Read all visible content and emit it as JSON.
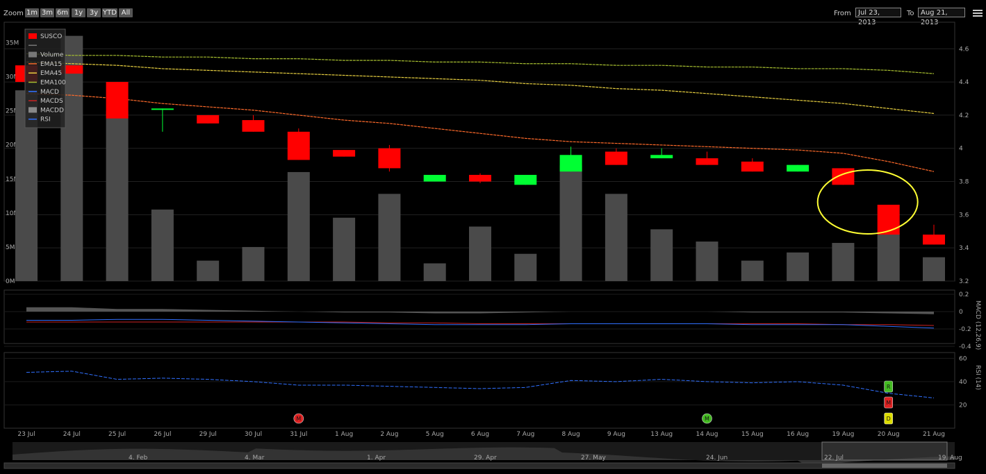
{
  "toolbar": {
    "zoom_label": "Zoom",
    "zoom_buttons": [
      "1m",
      "3m",
      "6m",
      "1y",
      "3y",
      "YTD",
      "All"
    ],
    "from_label": "From",
    "from_value": "Jul 23, 2013",
    "to_label": "To",
    "to_value": "Aug 21, 2013",
    "menu_icon": "menu-icon"
  },
  "chart_data": {
    "type": "candlestick",
    "categories": [
      "23 Jul",
      "24 Jul",
      "25 Jul",
      "26 Jul",
      "29 Jul",
      "30 Jul",
      "31 Jul",
      "1 Aug",
      "2 Aug",
      "5 Aug",
      "6 Aug",
      "7 Aug",
      "8 Aug",
      "9 Aug",
      "13 Aug",
      "14 Aug",
      "15 Aug",
      "16 Aug",
      "19 Aug",
      "20 Aug",
      "21 Aug"
    ],
    "price_series": {
      "name": "SUSCO",
      "up_color": "#00ff33",
      "down_color": "#ff0000",
      "ohlc": [
        [
          4.5,
          4.5,
          4.4,
          4.4
        ],
        [
          4.5,
          4.5,
          4.45,
          4.45
        ],
        [
          4.4,
          4.4,
          4.18,
          4.18
        ],
        [
          4.24,
          4.24,
          4.1,
          4.24
        ],
        [
          4.2,
          4.2,
          4.15,
          4.15
        ],
        [
          4.17,
          4.2,
          4.1,
          4.1
        ],
        [
          4.1,
          4.12,
          3.93,
          3.93
        ],
        [
          3.99,
          3.99,
          3.95,
          3.95
        ],
        [
          4.0,
          4.02,
          3.86,
          3.88
        ],
        [
          3.8,
          3.84,
          3.8,
          3.84
        ],
        [
          3.84,
          3.85,
          3.79,
          3.8
        ],
        [
          3.78,
          3.84,
          3.78,
          3.84
        ],
        [
          3.86,
          4.01,
          3.86,
          3.96
        ],
        [
          3.98,
          4.0,
          3.9,
          3.9
        ],
        [
          3.94,
          4.0,
          3.94,
          3.96
        ],
        [
          3.94,
          3.98,
          3.9,
          3.9
        ],
        [
          3.92,
          3.94,
          3.86,
          3.86
        ],
        [
          3.86,
          3.9,
          3.86,
          3.9
        ],
        [
          3.88,
          3.88,
          3.78,
          3.78
        ],
        [
          3.66,
          3.66,
          3.48,
          3.48
        ],
        [
          3.48,
          3.54,
          3.42,
          3.42
        ]
      ]
    },
    "volume": {
      "name": "Volume",
      "unit": "M",
      "color": "#4a4a4a",
      "values": [
        28,
        36,
        25,
        10.5,
        3,
        5,
        16,
        9.3,
        12.8,
        2.6,
        8,
        4,
        17,
        12.8,
        7.6,
        5.8,
        3,
        4.2,
        5.6,
        7,
        3.5
      ]
    },
    "ema": [
      {
        "name": "EMA15",
        "color": "#ff6a2a",
        "values": [
          4.33,
          4.32,
          4.3,
          4.27,
          4.25,
          4.23,
          4.2,
          4.17,
          4.15,
          4.12,
          4.09,
          4.06,
          4.04,
          4.03,
          4.02,
          4.01,
          4.0,
          3.99,
          3.97,
          3.92,
          3.86
        ]
      },
      {
        "name": "EMA45",
        "color": "#e8d040",
        "values": [
          4.52,
          4.51,
          4.5,
          4.48,
          4.47,
          4.46,
          4.45,
          4.44,
          4.43,
          4.42,
          4.41,
          4.39,
          4.38,
          4.36,
          4.35,
          4.33,
          4.31,
          4.29,
          4.27,
          4.24,
          4.21
        ]
      },
      {
        "name": "EMA100",
        "color": "#a8c030",
        "values": [
          4.57,
          4.56,
          4.56,
          4.55,
          4.55,
          4.54,
          4.54,
          4.53,
          4.53,
          4.52,
          4.52,
          4.51,
          4.51,
          4.5,
          4.5,
          4.49,
          4.49,
          4.48,
          4.48,
          4.47,
          4.45
        ]
      }
    ],
    "macd": {
      "title": "MACD (12,26,9)",
      "ylim": [
        -0.4,
        0.2
      ],
      "yticks": [
        "0.2",
        "0",
        "-0.2",
        "-0.4"
      ],
      "macd": {
        "name": "MACD",
        "color": "#3070ff",
        "values": [
          -0.1,
          -0.1,
          -0.09,
          -0.09,
          -0.1,
          -0.11,
          -0.12,
          -0.13,
          -0.14,
          -0.15,
          -0.15,
          -0.15,
          -0.14,
          -0.14,
          -0.14,
          -0.14,
          -0.15,
          -0.15,
          -0.15,
          -0.17,
          -0.19
        ]
      },
      "macds": {
        "name": "MACDS",
        "color": "#cc2222",
        "values": [
          -0.12,
          -0.12,
          -0.12,
          -0.12,
          -0.12,
          -0.12,
          -0.12,
          -0.12,
          -0.13,
          -0.13,
          -0.14,
          -0.14,
          -0.14,
          -0.14,
          -0.14,
          -0.14,
          -0.14,
          -0.14,
          -0.15,
          -0.15,
          -0.16
        ]
      },
      "macdd": {
        "name": "MACDD",
        "color": "#555555",
        "values": [
          0.05,
          0.05,
          0.03,
          0.03,
          0.02,
          0.01,
          0,
          -0.01,
          -0.01,
          -0.02,
          -0.02,
          -0.01,
          0,
          0,
          0,
          0,
          -0.01,
          -0.01,
          -0.01,
          -0.02,
          -0.03
        ]
      }
    },
    "rsi": {
      "title": "RSI (14)",
      "name": "RSI",
      "color": "#3070ff",
      "ylim": [
        0,
        65
      ],
      "yticks": [
        "60",
        "40",
        "20"
      ],
      "values": [
        48,
        49,
        42,
        43,
        42,
        40,
        37,
        37,
        36,
        35,
        34,
        35,
        41,
        40,
        42,
        40,
        39,
        40,
        37,
        30,
        26
      ]
    },
    "price_axis": {
      "ylim": [
        3.2,
        4.76
      ],
      "ticks": [
        "4.6",
        "4.4",
        "4.2",
        "4",
        "3.8",
        "3.6",
        "3.4",
        "3.2"
      ]
    },
    "volume_axis": {
      "ylim": [
        0,
        38
      ],
      "ticks": [
        "35M",
        "30M",
        "25M",
        "20M",
        "15M",
        "10M",
        "5M",
        "0M"
      ]
    },
    "markers": [
      {
        "index": 6,
        "label": "M",
        "color": "#dd2222",
        "pane": "rsi"
      },
      {
        "index": 15,
        "label": "M",
        "color": "#44bb22",
        "pane": "rsi"
      },
      {
        "index": 19,
        "label": "R",
        "color": "#44bb22",
        "pane": "rsi"
      },
      {
        "index": 19,
        "label": "M",
        "color": "#dd2222",
        "pane": "rsi"
      },
      {
        "index": 19,
        "label": "D",
        "color": "#dddd00",
        "pane": "rsi"
      }
    ],
    "highlight": {
      "index": 19,
      "shape": "ellipse",
      "color": "#ffff33"
    },
    "legend": {
      "placement": "top-left",
      "items": [
        {
          "name": "SUSCO",
          "color": "#ff0000"
        },
        {
          "name": "",
          "color": "#777777"
        },
        {
          "name": "Volume",
          "color": "#777777"
        },
        {
          "name": "EMA15",
          "color": "#ff6a2a"
        },
        {
          "name": "EMA45",
          "color": "#e8d040"
        },
        {
          "name": "EMA100",
          "color": "#a8c030"
        },
        {
          "name": "MACD",
          "color": "#3070ff"
        },
        {
          "name": "MACDS",
          "color": "#cc2222"
        },
        {
          "name": "MACDD",
          "color": "#888888"
        },
        {
          "name": "RSI",
          "color": "#3070ff"
        }
      ]
    },
    "navigator": {
      "labels": [
        "4. Feb",
        "4. Mar",
        "1. Apr",
        "29. Apr",
        "27. May",
        "24. Jun",
        "22. Jul",
        "19. Aug"
      ]
    }
  }
}
